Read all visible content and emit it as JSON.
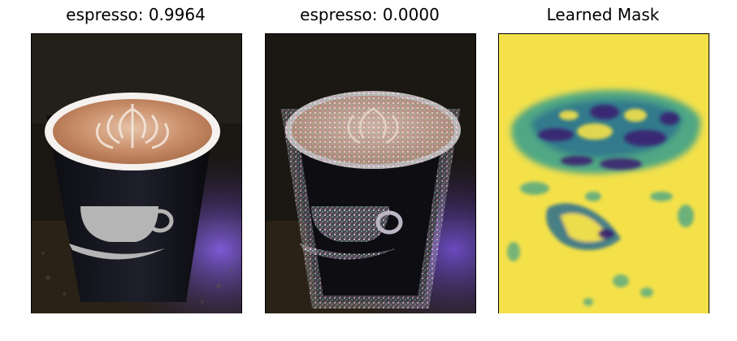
{
  "panels": [
    {
      "title": "espresso: 0.9964"
    },
    {
      "title": "espresso: 0.0000"
    },
    {
      "title": "Learned Mask"
    }
  ],
  "colors": {
    "mask_background": "#f4e14a",
    "mask_mid": "#3fa18a",
    "mask_dark": "#3a1d70",
    "cup_dark": "#15151a",
    "latte": "#c98f6b",
    "foam": "#f3e6da",
    "counter": "#2a2217",
    "purple_light": "#6b4ac0"
  }
}
